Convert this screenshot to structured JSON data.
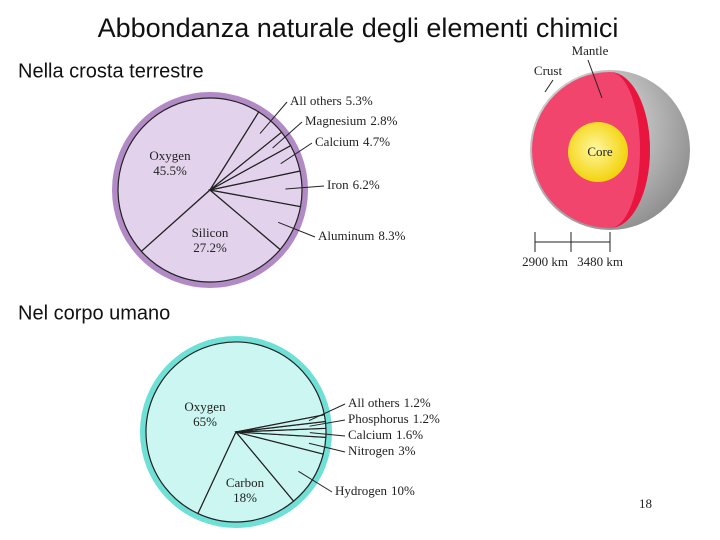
{
  "slide": {
    "title": "Abbondanza naturale degli elementi chimici",
    "page_number": "18"
  },
  "chart_data": [
    {
      "type": "pie",
      "title": "Nella crosta terrestre",
      "categories": [
        "Oxygen",
        "Silicon",
        "Aluminum",
        "Iron",
        "Calcium",
        "Magnesium",
        "All others"
      ],
      "values": [
        45.5,
        27.2,
        8.3,
        6.2,
        4.7,
        2.8,
        5.3
      ],
      "value_labels": [
        "45.5%",
        "27.2%",
        "8.3%",
        "6.2%",
        "4.7%",
        "2.8%",
        "5.3%"
      ],
      "color": "#e3d2ec",
      "edge_color": "#b28ac6"
    },
    {
      "type": "pie",
      "title": "Nel corpo umano",
      "categories": [
        "Oxygen",
        "Carbon",
        "Hydrogen",
        "Nitrogen",
        "Calcium",
        "Phosphorus",
        "All others"
      ],
      "values": [
        65,
        18,
        10,
        3,
        1.6,
        1.2,
        1.2
      ],
      "value_labels": [
        "65%",
        "18%",
        "10%",
        "3%",
        "1.6%",
        "1.2%",
        "1.2%"
      ],
      "color": "#cbf6f1",
      "edge_color": "#6fe0d6"
    }
  ],
  "diagram": {
    "mantle": "Mantle",
    "crust": "Crust",
    "core": "Core",
    "mantle_depth": "2900 km",
    "core_radius": "3480 km"
  }
}
